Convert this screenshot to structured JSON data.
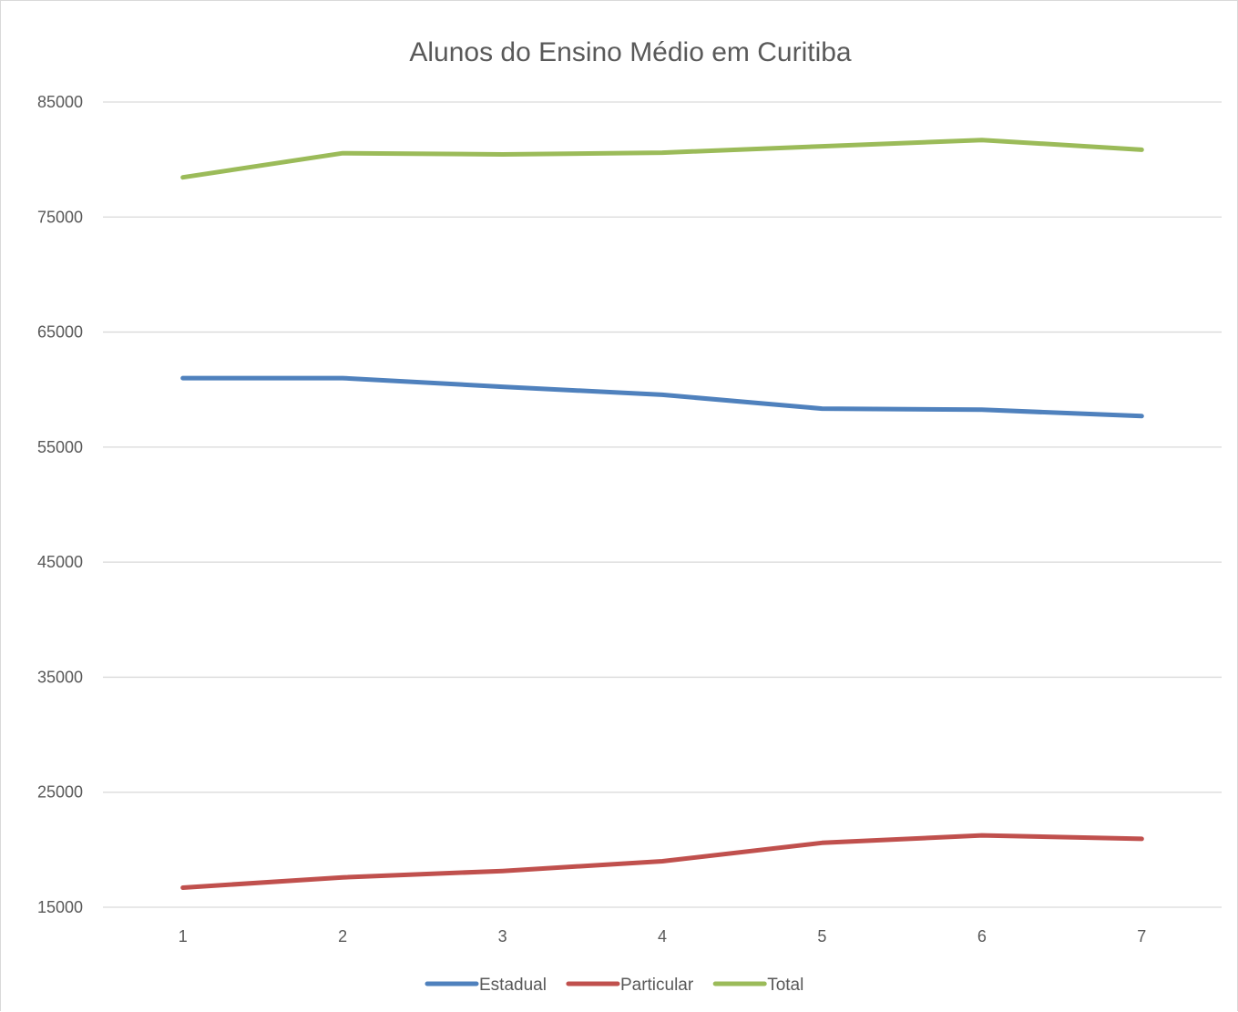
{
  "chart_data": {
    "type": "line",
    "title": "Alunos do Ensino Médio em Curitiba",
    "xlabel": "",
    "ylabel": "",
    "x": [
      1,
      2,
      3,
      4,
      5,
      6,
      7
    ],
    "x_tick_labels": [
      "1",
      "2",
      "3",
      "4",
      "5",
      "6",
      "7"
    ],
    "y_tick_labels": [
      "15000",
      "25000",
      "35000",
      "45000",
      "55000",
      "65000",
      "75000",
      "85000"
    ],
    "ylim": [
      15000,
      85000
    ],
    "y_ticks": [
      15000,
      25000,
      35000,
      45000,
      55000,
      65000,
      75000,
      85000
    ],
    "grid": true,
    "legend_position": "bottom",
    "series": [
      {
        "name": "Estadual",
        "color": "#4f81bd",
        "values": [
          61000,
          61000,
          60250,
          59550,
          58350,
          58250,
          57700
        ]
      },
      {
        "name": "Particular",
        "color": "#c0504d",
        "values": [
          16700,
          17600,
          18150,
          19000,
          20600,
          21250,
          20950
        ]
      },
      {
        "name": "Total",
        "color": "#9bbb59",
        "values": [
          78450,
          80550,
          80450,
          80600,
          81150,
          81700,
          80850
        ]
      }
    ]
  }
}
